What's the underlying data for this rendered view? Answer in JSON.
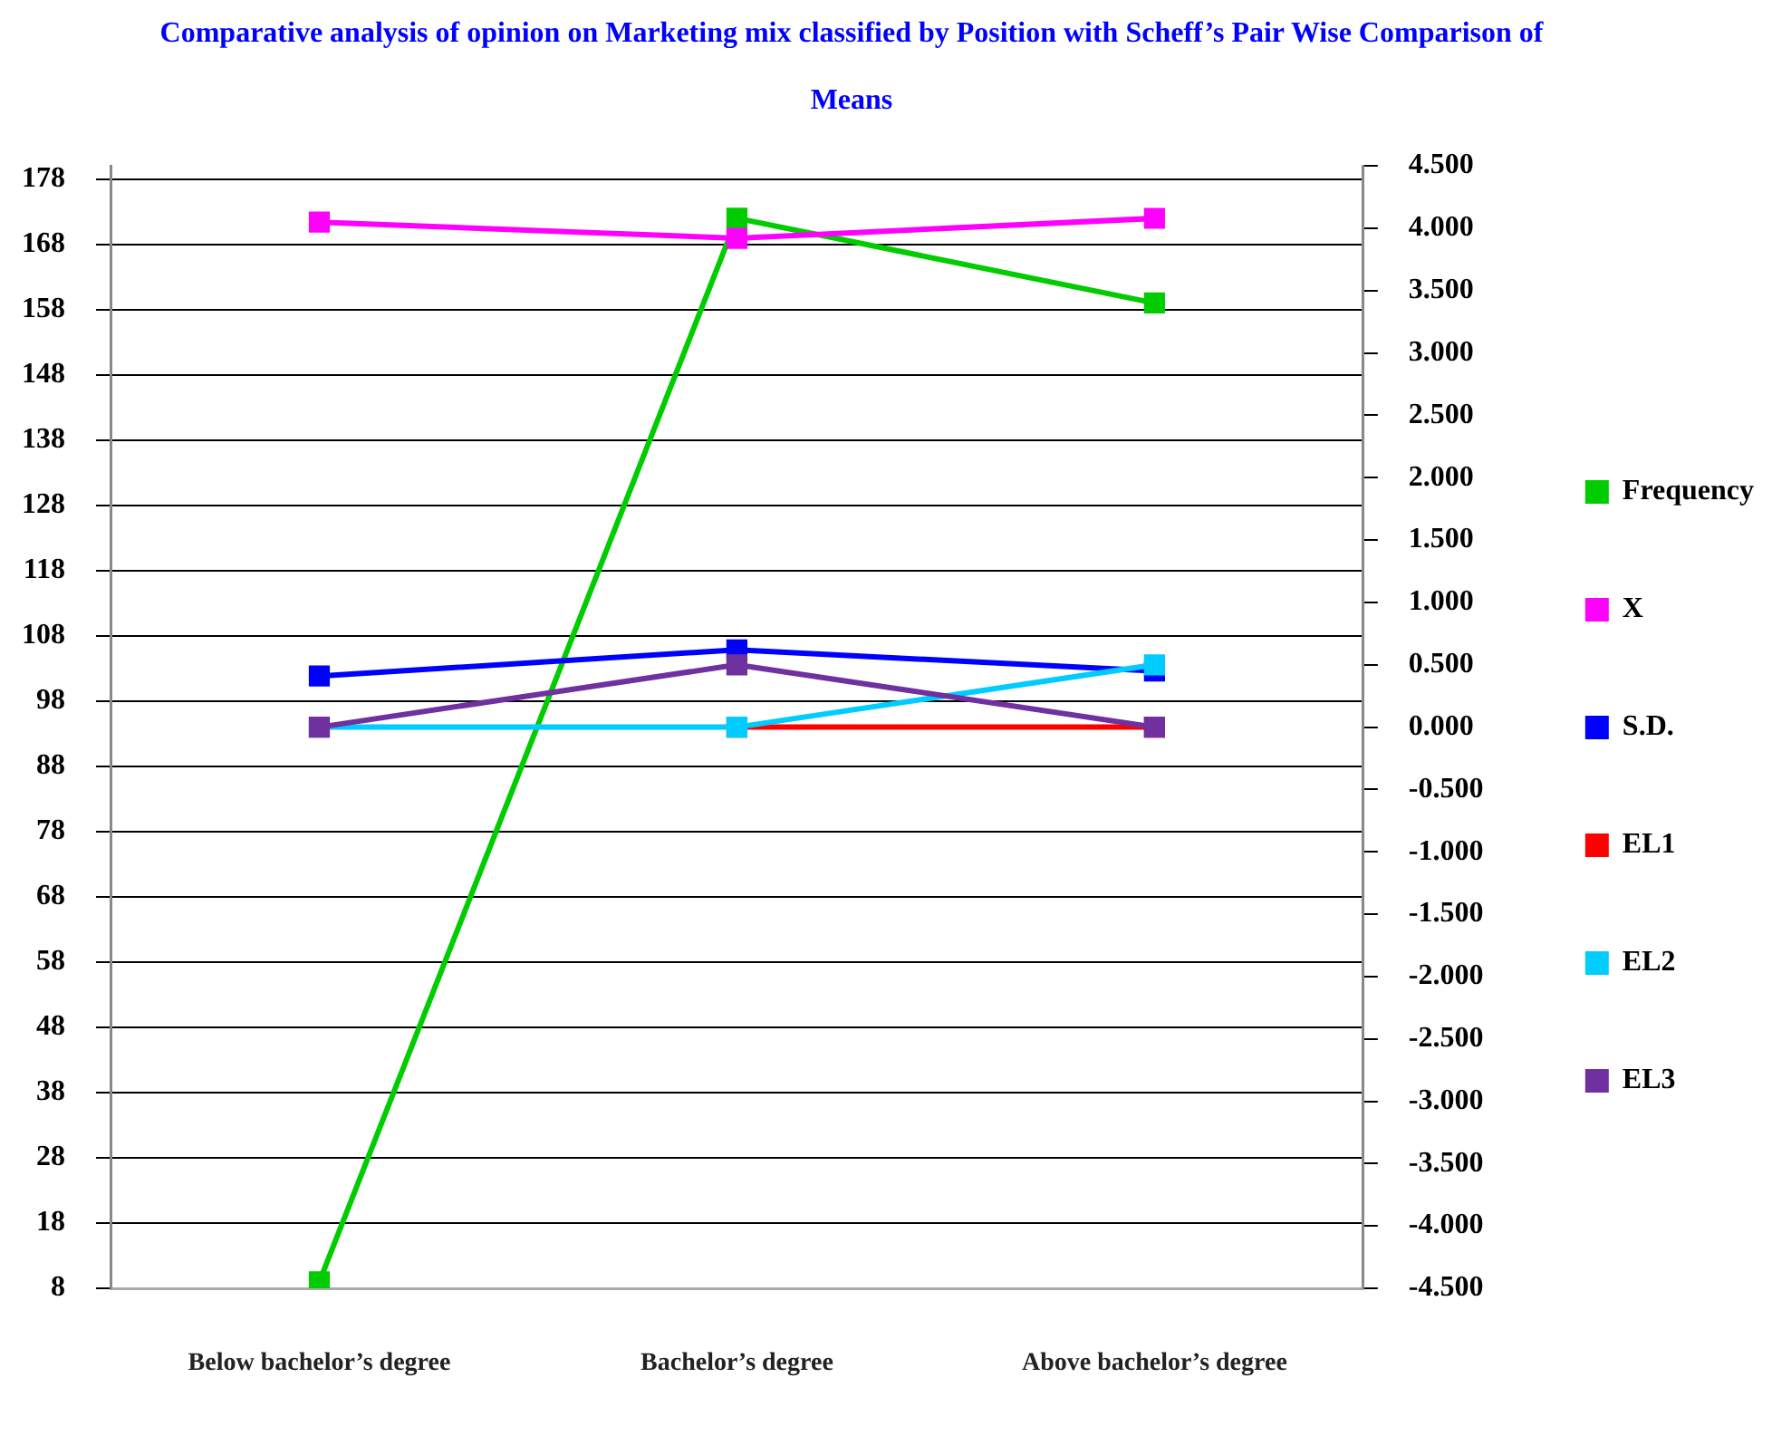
{
  "chart_data": {
    "type": "line",
    "title": "Comparative analysis of opinion on Marketing mix classified by Position with Scheff’s Pair Wise Comparison of Means",
    "categories": [
      "Below bachelor’s degree",
      "Bachelor’s degree",
      "Above bachelor’s degree"
    ],
    "series": [
      {
        "name": "Frequency",
        "color": "#00cc00",
        "values": [
          9,
          172,
          159
        ]
      },
      {
        "name": "X",
        "color": "#ff00ff",
        "values": [
          4.05,
          3.92,
          4.08
        ],
        "axis": "y2"
      },
      {
        "name": "S.D.",
        "color": "#0000ff",
        "values": [
          0.41,
          0.62,
          0.45
        ],
        "axis": "y2"
      },
      {
        "name": "EL1",
        "color": "#ff0000",
        "values": [
          null,
          0,
          0
        ],
        "axis": "y2"
      },
      {
        "name": "EL2",
        "color": "#00ccff",
        "values": [
          0,
          0,
          0.5
        ],
        "axis": "y2"
      },
      {
        "name": "EL3",
        "color": "#7030a0",
        "values": [
          0,
          0.5,
          0
        ],
        "axis": "y2"
      }
    ],
    "ylim": [
      8,
      180
    ],
    "yticks": [
      8,
      18,
      28,
      38,
      48,
      58,
      68,
      78,
      88,
      98,
      108,
      118,
      128,
      138,
      148,
      158,
      168,
      178
    ],
    "y2lim": [
      -4.5,
      4.5
    ],
    "y2ticks": [
      {
        "value": -4.5,
        "label": "-4.500"
      },
      {
        "value": -4,
        "label": "-4.000"
      },
      {
        "value": -3.5,
        "label": "-3.500"
      },
      {
        "value": -3,
        "label": "-3.000"
      },
      {
        "value": -2.5,
        "label": "-2.500"
      },
      {
        "value": -2,
        "label": "-2.000"
      },
      {
        "value": -1.5,
        "label": "-1.500"
      },
      {
        "value": -1,
        "label": "-1.000"
      },
      {
        "value": -0.5,
        "label": "-0.500"
      },
      {
        "value": 0,
        "label": "0.000"
      },
      {
        "value": 0.5,
        "label": "0.500"
      },
      {
        "value": 1,
        "label": "1.000"
      },
      {
        "value": 1.5,
        "label": "1.500"
      },
      {
        "value": 2,
        "label": "2.000"
      },
      {
        "value": 2.5,
        "label": "2.500"
      },
      {
        "value": 3,
        "label": "3.000"
      },
      {
        "value": 3.5,
        "label": "3.500"
      },
      {
        "value": 4,
        "label": "4.000"
      },
      {
        "value": 4.5,
        "label": "4.500"
      }
    ],
    "grid": "y",
    "legend": "right",
    "marker": "square",
    "line_style": "solid"
  }
}
